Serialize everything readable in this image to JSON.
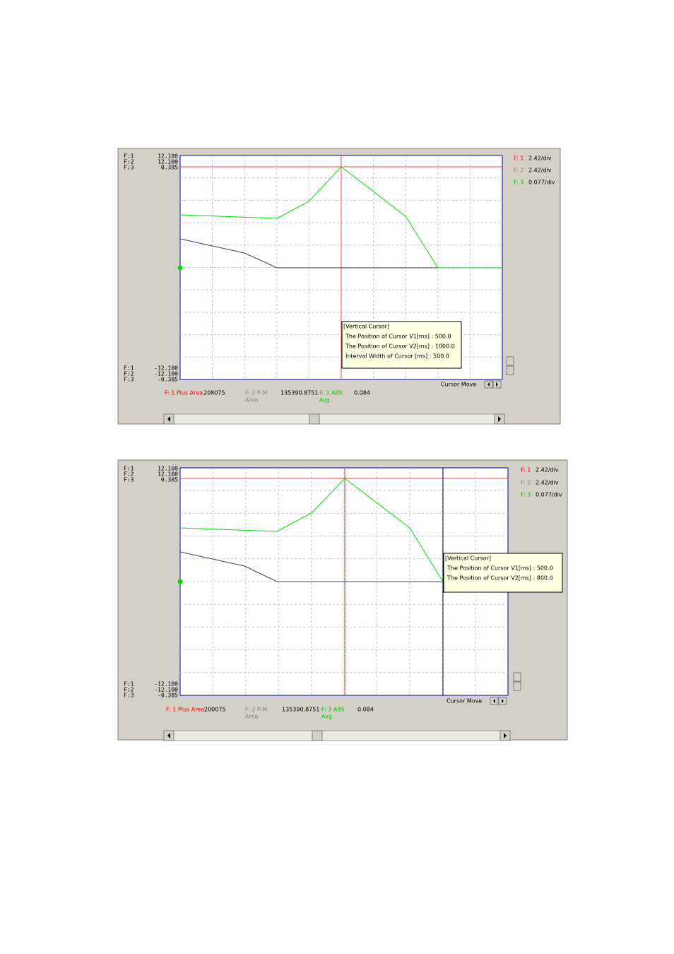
{
  "panels": [
    {
      "top_labels": [
        "F:1",
        "F:2",
        "F:3"
      ],
      "top_values": [
        "12.100",
        "12.100",
        "0.385"
      ],
      "bottom_labels": [
        "F:1",
        "F:2",
        "F:3"
      ],
      "bottom_values": [
        "-12.100",
        "-12.100",
        "-0.385"
      ],
      "legend": [
        {
          "name": "F: 1",
          "scale": "2.42/div"
        },
        {
          "name": "F: 2",
          "scale": "2.42/div"
        },
        {
          "name": "F: 3",
          "scale": "0.077/div"
        }
      ],
      "tooltip": [
        "[Vertical Cursor]",
        "The Position of Cursor V1[ms] : 500.0",
        "The Position of Cursor V2[ms] : 1000.0",
        "Interval Width of Cursor [ms] : 500.0"
      ],
      "status": {
        "f1_label": "F: 1 Plus Area",
        "f1_value": "208075",
        "f2_label": "F: 2 P-M",
        "f2_sub": "Area",
        "f2_value": "135390.8751",
        "f3_label": "F: 3 ABS",
        "f3_sub": "Avg",
        "f3_value": "0.084"
      },
      "cursor_move": "Cursor Move"
    },
    {
      "top_labels": [
        "F:1",
        "F:2",
        "F:3"
      ],
      "top_values": [
        "12.100",
        "12.100",
        "0.385"
      ],
      "bottom_labels": [
        "F:1",
        "F:2",
        "F:3"
      ],
      "bottom_values": [
        "-12.100",
        "-12.100",
        "-0.385"
      ],
      "legend": [
        {
          "name": "F: 1",
          "scale": "2.42/div"
        },
        {
          "name": "F: 2",
          "scale": "2.42/div"
        },
        {
          "name": "F: 3",
          "scale": "0.077/div"
        }
      ],
      "tooltip": [
        "[Vertical Cursor]",
        "The Position of Cursor V1[ms] : 500.0",
        "The Position of Cursor V2[ms] : 800.0"
      ],
      "status": {
        "f1_label": "F: 1 Plus Area",
        "f1_value": "200075",
        "f2_label": "F: 2 P-M",
        "f2_sub": "Area",
        "f2_value": "135390.8751",
        "f3_label": "F: 3 ABS",
        "f3_sub": "Avg",
        "f3_value": "0.084"
      },
      "cursor_move": "Cursor Move"
    }
  ]
}
